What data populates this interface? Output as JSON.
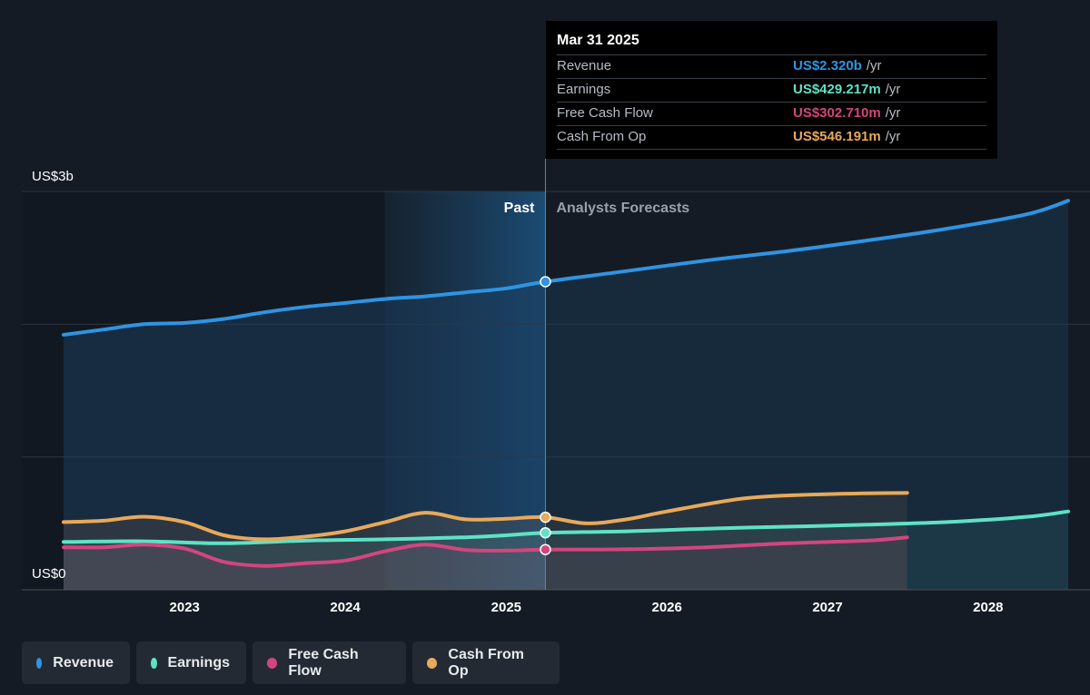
{
  "chart_data": {
    "type": "area",
    "x_range": [
      "2022-04-01",
      "2028-07-01"
    ],
    "ylim": [
      0,
      3000000000
    ],
    "y_tick_labels": {
      "top": "US$3b",
      "bottom": "US$0"
    },
    "x_ticks": [
      "2023",
      "2024",
      "2025",
      "2026",
      "2027",
      "2028"
    ],
    "past_label": "Past",
    "forecast_label": "Analysts Forecasts",
    "divider_date": "2025-03-31",
    "shaded_past_start": "2024-03-31",
    "series": [
      {
        "name": "Revenue",
        "color": "#2f94e2",
        "points": [
          [
            "2022-04-01",
            1920000000
          ],
          [
            "2022-07-01",
            1960000000
          ],
          [
            "2022-10-01",
            2000000000
          ],
          [
            "2023-01-01",
            2010000000
          ],
          [
            "2023-04-01",
            2040000000
          ],
          [
            "2023-07-01",
            2090000000
          ],
          [
            "2023-10-01",
            2130000000
          ],
          [
            "2024-01-01",
            2160000000
          ],
          [
            "2024-04-01",
            2190000000
          ],
          [
            "2024-07-01",
            2210000000
          ],
          [
            "2024-10-01",
            2240000000
          ],
          [
            "2025-01-01",
            2270000000
          ],
          [
            "2025-03-31",
            2320000000
          ],
          [
            "2025-09-30",
            2400000000
          ],
          [
            "2026-03-31",
            2480000000
          ],
          [
            "2026-09-30",
            2550000000
          ],
          [
            "2027-03-31",
            2630000000
          ],
          [
            "2027-09-30",
            2720000000
          ],
          [
            "2028-03-31",
            2830000000
          ],
          [
            "2028-07-01",
            2930000000
          ]
        ]
      },
      {
        "name": "Earnings",
        "color": "#5ee2c6",
        "points": [
          [
            "2022-04-01",
            360000000
          ],
          [
            "2022-10-01",
            365000000
          ],
          [
            "2023-04-01",
            350000000
          ],
          [
            "2023-10-01",
            370000000
          ],
          [
            "2024-04-01",
            380000000
          ],
          [
            "2024-10-01",
            395000000
          ],
          [
            "2025-01-01",
            410000000
          ],
          [
            "2025-03-31",
            429217000
          ],
          [
            "2025-09-30",
            440000000
          ],
          [
            "2026-03-31",
            460000000
          ],
          [
            "2026-09-30",
            475000000
          ],
          [
            "2027-03-31",
            490000000
          ],
          [
            "2027-09-30",
            510000000
          ],
          [
            "2028-03-31",
            550000000
          ],
          [
            "2028-07-01",
            590000000
          ]
        ]
      },
      {
        "name": "Free Cash Flow",
        "color": "#d3457f",
        "points": [
          [
            "2022-04-01",
            320000000
          ],
          [
            "2022-07-01",
            320000000
          ],
          [
            "2022-10-01",
            340000000
          ],
          [
            "2023-01-01",
            310000000
          ],
          [
            "2023-04-01",
            210000000
          ],
          [
            "2023-07-01",
            180000000
          ],
          [
            "2023-10-01",
            200000000
          ],
          [
            "2024-01-01",
            220000000
          ],
          [
            "2024-04-01",
            290000000
          ],
          [
            "2024-07-01",
            340000000
          ],
          [
            "2024-10-01",
            300000000
          ],
          [
            "2025-01-01",
            295000000
          ],
          [
            "2025-03-31",
            302710000
          ],
          [
            "2025-09-30",
            305000000
          ],
          [
            "2026-03-31",
            320000000
          ],
          [
            "2026-09-30",
            350000000
          ],
          [
            "2027-03-31",
            370000000
          ],
          [
            "2027-07-01",
            395000000
          ]
        ]
      },
      {
        "name": "Cash From Op",
        "color": "#e8a95a",
        "points": [
          [
            "2022-04-01",
            510000000
          ],
          [
            "2022-07-01",
            520000000
          ],
          [
            "2022-10-01",
            550000000
          ],
          [
            "2023-01-01",
            510000000
          ],
          [
            "2023-04-01",
            410000000
          ],
          [
            "2023-07-01",
            380000000
          ],
          [
            "2023-10-01",
            400000000
          ],
          [
            "2024-01-01",
            440000000
          ],
          [
            "2024-04-01",
            510000000
          ],
          [
            "2024-07-01",
            580000000
          ],
          [
            "2024-10-01",
            530000000
          ],
          [
            "2025-01-01",
            535000000
          ],
          [
            "2025-03-31",
            546191000
          ],
          [
            "2025-07-01",
            500000000
          ],
          [
            "2025-10-01",
            530000000
          ],
          [
            "2026-01-01",
            590000000
          ],
          [
            "2026-07-01",
            690000000
          ],
          [
            "2027-01-01",
            720000000
          ],
          [
            "2027-07-01",
            730000000
          ]
        ]
      }
    ]
  },
  "tooltip": {
    "date": "Mar 31 2025",
    "rows": [
      {
        "label": "Revenue",
        "value": "US$2.320b",
        "unit": "/yr",
        "color": "#2f94e2"
      },
      {
        "label": "Earnings",
        "value": "US$429.217m",
        "unit": "/yr",
        "color": "#5ee2c6"
      },
      {
        "label": "Free Cash Flow",
        "value": "US$302.710m",
        "unit": "/yr",
        "color": "#d3457f"
      },
      {
        "label": "Cash From Op",
        "value": "US$546.191m",
        "unit": "/yr",
        "color": "#e8a95a"
      }
    ]
  },
  "legend": [
    {
      "label": "Revenue",
      "color": "#2f94e2"
    },
    {
      "label": "Earnings",
      "color": "#5ee2c6"
    },
    {
      "label": "Free Cash Flow",
      "color": "#d3457f"
    },
    {
      "label": "Cash From Op",
      "color": "#e8a95a"
    }
  ]
}
